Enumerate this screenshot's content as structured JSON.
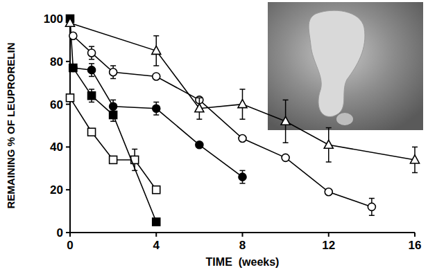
{
  "chart_data": {
    "type": "line",
    "xlabel": "TIME  (weeks)",
    "ylabel": "REMAINING % OF LEUPRORELIN",
    "xlim": [
      0,
      16
    ],
    "ylim": [
      0,
      100
    ],
    "xticks": [
      0,
      4,
      8,
      12,
      16
    ],
    "yticks": [
      0,
      20,
      40,
      60,
      80,
      100
    ],
    "grid": false,
    "series": [
      {
        "color": "#000000",
        "marker": "square-open",
        "line_style": "solid",
        "x": [
          0,
          1,
          2,
          3,
          4
        ],
        "values": [
          63,
          47,
          34,
          34,
          20
        ],
        "errors": [
          null,
          null,
          null,
          5,
          null
        ]
      },
      {
        "color": "#000000",
        "marker": "square",
        "line_style": "solid",
        "x": [
          0,
          0.14,
          1,
          2,
          4
        ],
        "values": [
          100,
          77,
          64,
          55,
          5
        ],
        "errors": [
          null,
          null,
          3,
          3,
          null
        ]
      },
      {
        "color": "#000000",
        "marker": "circle",
        "line_style": "solid",
        "x": [
          0.14,
          1,
          2,
          4,
          6,
          8
        ],
        "values": [
          77,
          76,
          59,
          58,
          41,
          26
        ],
        "errors": [
          null,
          3,
          3,
          3,
          null,
          3
        ]
      },
      {
        "color": "#000000",
        "marker": "circle-open",
        "line_style": "solid",
        "x": [
          0.14,
          1,
          2,
          4,
          6,
          8,
          10,
          12,
          14
        ],
        "values": [
          92,
          84,
          75,
          73,
          62,
          44,
          35,
          19,
          12
        ],
        "errors": [
          null,
          3,
          3,
          null,
          null,
          null,
          null,
          null,
          4
        ]
      },
      {
        "color": "#000000",
        "marker": "triangle-open",
        "line_style": "solid",
        "x": [
          0,
          4,
          6,
          8,
          10,
          12,
          16
        ],
        "values": [
          98,
          85,
          58,
          60,
          52,
          41,
          34
        ],
        "errors": [
          null,
          7,
          5,
          7,
          10,
          8,
          6
        ]
      }
    ]
  }
}
